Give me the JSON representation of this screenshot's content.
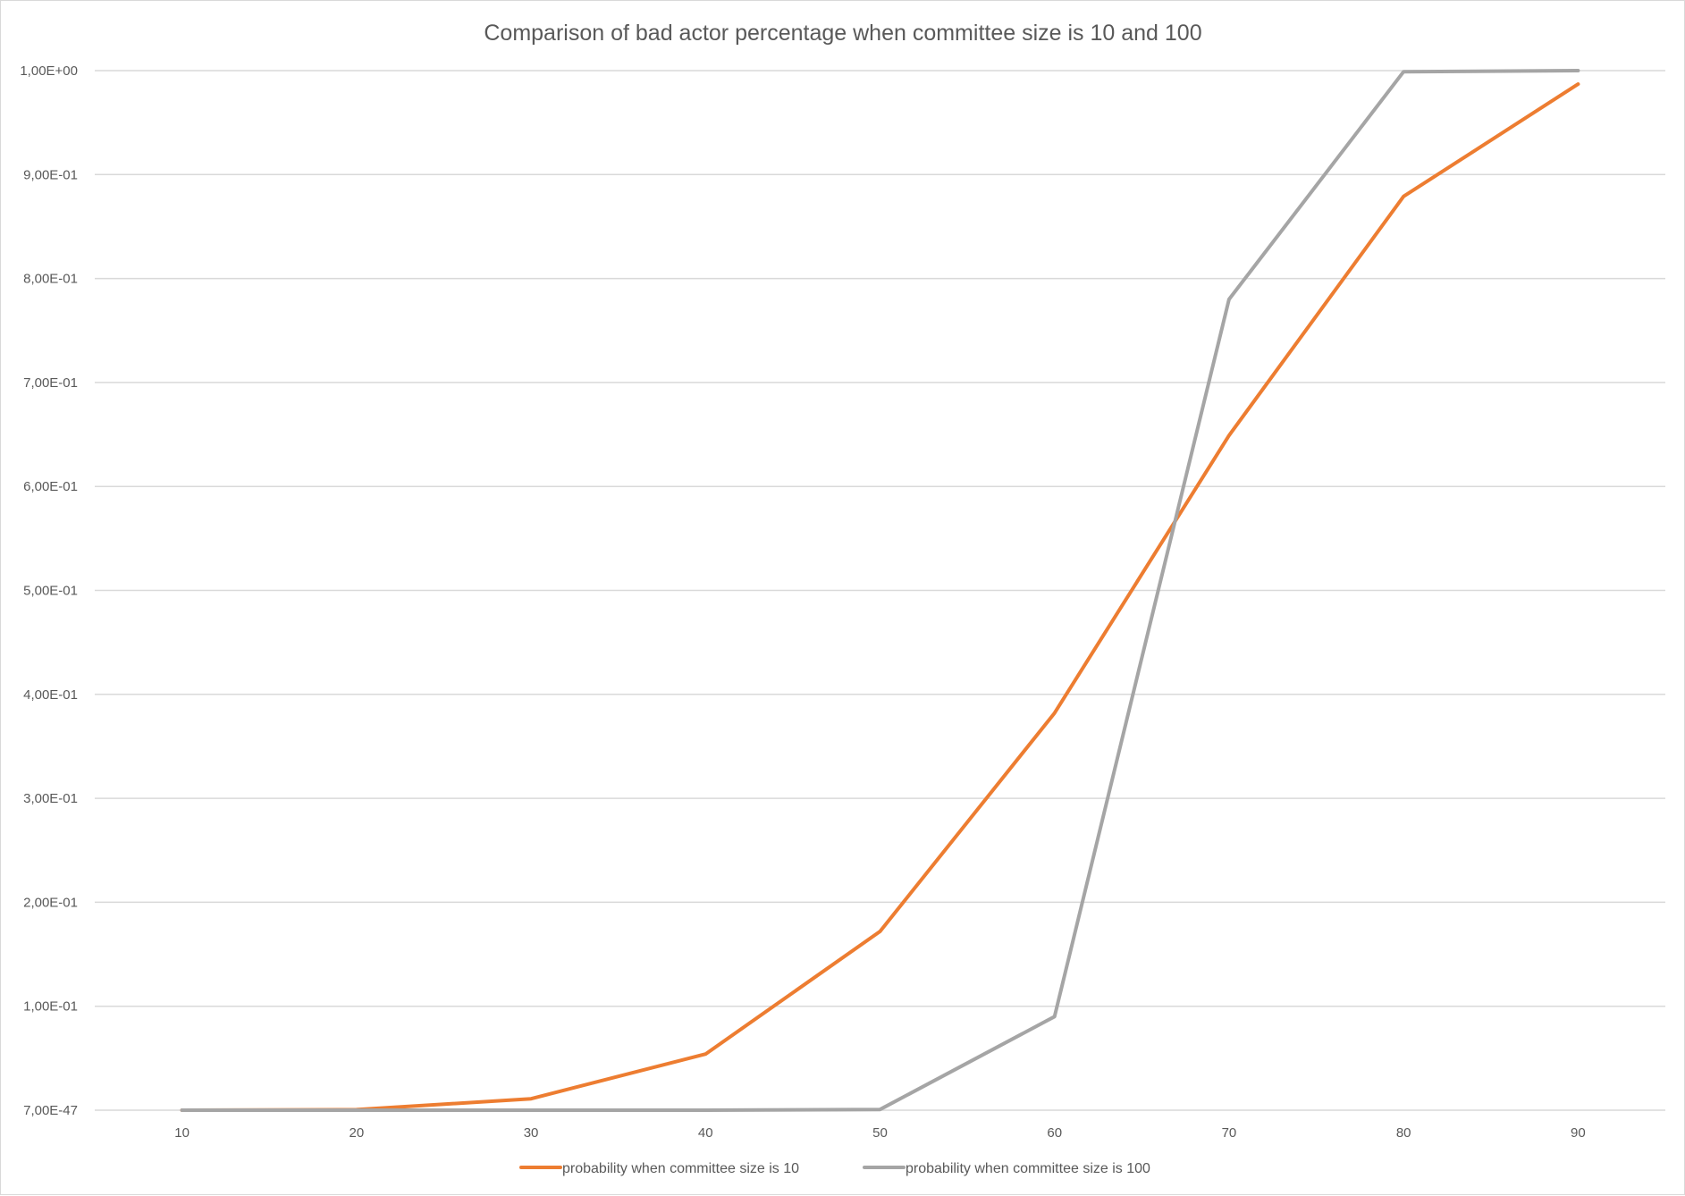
{
  "chart_data": {
    "type": "line",
    "title": "Comparison of bad actor percentage when committee size is 10 and 100",
    "xlabel": "",
    "ylabel": "",
    "categories": [
      "10",
      "20",
      "30",
      "40",
      "50",
      "60",
      "70",
      "80",
      "90"
    ],
    "y_ticks": [
      {
        "value": 0.0,
        "label": "7,00E-47"
      },
      {
        "value": 0.1,
        "label": "1,00E-01"
      },
      {
        "value": 0.2,
        "label": "2,00E-01"
      },
      {
        "value": 0.3,
        "label": "3,00E-01"
      },
      {
        "value": 0.4,
        "label": "4,00E-01"
      },
      {
        "value": 0.5,
        "label": "5,00E-01"
      },
      {
        "value": 0.6,
        "label": "6,00E-01"
      },
      {
        "value": 0.7,
        "label": "7,00E-01"
      },
      {
        "value": 0.8,
        "label": "8,00E-01"
      },
      {
        "value": 0.9,
        "label": "9,00E-01"
      },
      {
        "value": 1.0,
        "label": "1,00E+00"
      }
    ],
    "ylim": [
      0,
      1
    ],
    "grid": true,
    "legend_position": "bottom",
    "series": [
      {
        "name": "probability when committee size is 10",
        "color": "#ed7d31",
        "values": [
          0.0,
          0.0005,
          0.011,
          0.054,
          0.172,
          0.382,
          0.649,
          0.879,
          0.987
        ]
      },
      {
        "name": "probability when committee size is 100",
        "color": "#a5a5a5",
        "values": [
          0.0,
          0.0,
          0.0,
          0.0,
          0.0007,
          0.09,
          0.78,
          0.999,
          1.0
        ]
      }
    ]
  }
}
